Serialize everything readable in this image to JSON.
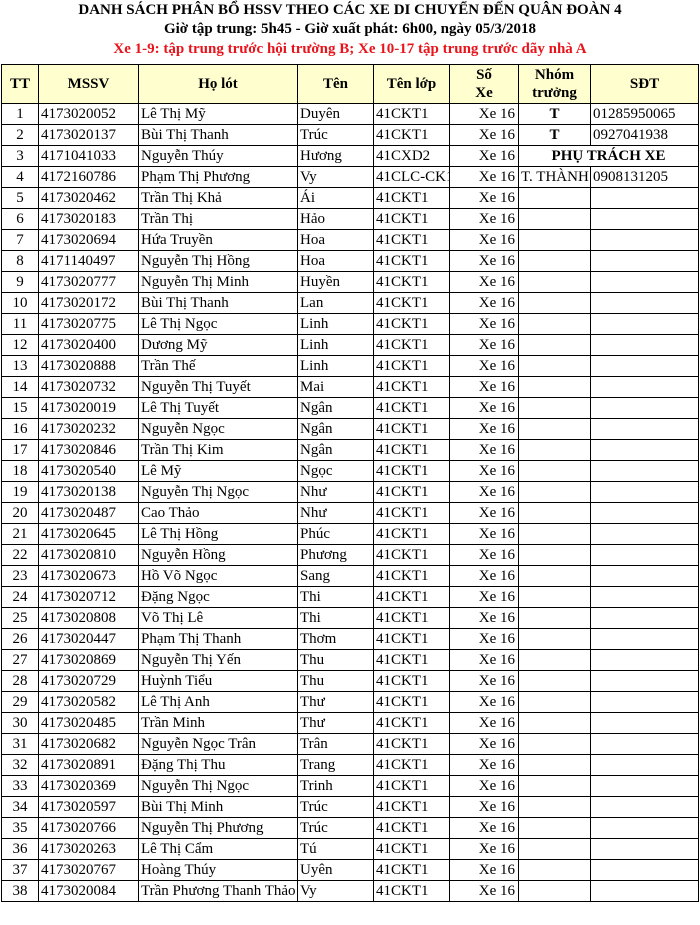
{
  "header": {
    "title": "DANH SÁCH PHÂN BỔ HSSV THEO CÁC XE DI CHUYỂN ĐẾN QUÂN ĐOÀN 4",
    "subtitle": "Giờ tập trung: 5h45 - Giờ xuất phát: 6h00, ngày 05/3/2018",
    "notice": "Xe 1-9: tập trung trước hội trường B; Xe 10-17 tập trung trước dãy nhà A",
    "notice_color": "#e8141b",
    "header_bg": "#fefecf"
  },
  "table": {
    "columns": {
      "tt": "TT",
      "mssv": "MSSV",
      "ho_lot": "Họ lót",
      "ten": "Tên",
      "ten_lop": "Tên lớp",
      "so_xe_1": "Số",
      "so_xe_2": "Xe",
      "nhom_truong_1": "Nhóm",
      "nhom_truong_2": "trưởng",
      "sdt": "SĐT"
    },
    "phu_trach_label": "PHỤ TRÁCH XE",
    "rows": [
      [
        "1",
        "4173020052",
        "Lê Thị Mỹ",
        "Duyên",
        "41CKT1",
        "Xe 16",
        "T",
        "01285950065"
      ],
      [
        "2",
        "4173020137",
        "Bùi Thị Thanh",
        "Trúc",
        "41CKT1",
        "Xe 16",
        "T",
        "0927041938"
      ],
      [
        "3",
        "4171041033",
        "Nguyễn Thúy",
        "Hương",
        "41CXD2",
        "Xe 16",
        "",
        ""
      ],
      [
        "4",
        "4172160786",
        "Phạm Thị Phương",
        "Vy",
        "41CLC-CK1",
        "Xe 16",
        "T. THÀNH",
        "0908131205"
      ],
      [
        "5",
        "4173020462",
        "Trần Thị Khả",
        "Ái",
        "41CKT1",
        "Xe 16",
        "",
        ""
      ],
      [
        "6",
        "4173020183",
        "Trần Thị",
        "Hảo",
        "41CKT1",
        "Xe 16",
        "",
        ""
      ],
      [
        "7",
        "4173020694",
        "Hứa Truyền",
        "Hoa",
        "41CKT1",
        "Xe 16",
        "",
        ""
      ],
      [
        "8",
        "4171140497",
        "Nguyễn Thị Hồng",
        "Hoa",
        "41CKT1",
        "Xe 16",
        "",
        ""
      ],
      [
        "9",
        "4173020777",
        "Nguyễn Thị Minh",
        "Huyền",
        "41CKT1",
        "Xe 16",
        "",
        ""
      ],
      [
        "10",
        "4173020172",
        "Bùi Thị Thanh",
        "Lan",
        "41CKT1",
        "Xe 16",
        "",
        ""
      ],
      [
        "11",
        "4173020775",
        "Lê Thị Ngọc",
        "Linh",
        "41CKT1",
        "Xe 16",
        "",
        ""
      ],
      [
        "12",
        "4173020400",
        "Dương Mỹ",
        "Linh",
        "41CKT1",
        "Xe 16",
        "",
        ""
      ],
      [
        "13",
        "4173020888",
        "Trần Thế",
        "Linh",
        "41CKT1",
        "Xe 16",
        "",
        ""
      ],
      [
        "14",
        "4173020732",
        "Nguyễn Thị Tuyết",
        "Mai",
        "41CKT1",
        "Xe 16",
        "",
        ""
      ],
      [
        "15",
        "4173020019",
        "Lê Thị Tuyết",
        "Ngân",
        "41CKT1",
        "Xe 16",
        "",
        ""
      ],
      [
        "16",
        "4173020232",
        "Nguyễn Ngọc",
        "Ngân",
        "41CKT1",
        "Xe 16",
        "",
        ""
      ],
      [
        "17",
        "4173020846",
        "Trần Thị Kim",
        "Ngân",
        "41CKT1",
        "Xe 16",
        "",
        ""
      ],
      [
        "18",
        "4173020540",
        "Lê Mỹ",
        "Ngọc",
        "41CKT1",
        "Xe 16",
        "",
        ""
      ],
      [
        "19",
        "4173020138",
        "Nguyễn Thị Ngọc",
        "Như",
        "41CKT1",
        "Xe 16",
        "",
        ""
      ],
      [
        "20",
        "4173020487",
        "Cao Thảo",
        "Như",
        "41CKT1",
        "Xe 16",
        "",
        ""
      ],
      [
        "21",
        "4173020645",
        "Lê Thị Hồng",
        "Phúc",
        "41CKT1",
        "Xe 16",
        "",
        ""
      ],
      [
        "22",
        "4173020810",
        "Nguyễn Hồng",
        "Phương",
        "41CKT1",
        "Xe 16",
        "",
        ""
      ],
      [
        "23",
        "4173020673",
        "Hồ Võ Ngọc",
        "Sang",
        "41CKT1",
        "Xe 16",
        "",
        ""
      ],
      [
        "24",
        "4173020712",
        "Đặng Ngọc",
        "Thi",
        "41CKT1",
        "Xe 16",
        "",
        ""
      ],
      [
        "25",
        "4173020808",
        "Võ Thị Lê",
        "Thi",
        "41CKT1",
        "Xe 16",
        "",
        ""
      ],
      [
        "26",
        "4173020447",
        "Phạm Thị Thanh",
        "Thơm",
        "41CKT1",
        "Xe 16",
        "",
        ""
      ],
      [
        "27",
        "4173020869",
        "Nguyễn Thị Yến",
        "Thu",
        "41CKT1",
        "Xe 16",
        "",
        ""
      ],
      [
        "28",
        "4173020729",
        "Huỳnh Tiểu",
        "Thu",
        "41CKT1",
        "Xe 16",
        "",
        ""
      ],
      [
        "29",
        "4173020582",
        "Lê Thị Anh",
        "Thư",
        "41CKT1",
        "Xe 16",
        "",
        ""
      ],
      [
        "30",
        "4173020485",
        "Trần Minh",
        "Thư",
        "41CKT1",
        "Xe 16",
        "",
        ""
      ],
      [
        "31",
        "4173020682",
        "Nguyễn Ngọc Trân",
        "Trân",
        "41CKT1",
        "Xe 16",
        "",
        ""
      ],
      [
        "32",
        "4173020891",
        "Đặng Thị Thu",
        "Trang",
        "41CKT1",
        "Xe 16",
        "",
        ""
      ],
      [
        "33",
        "4173020369",
        "Nguyễn Thị Ngọc",
        "Trinh",
        "41CKT1",
        "Xe 16",
        "",
        ""
      ],
      [
        "34",
        "4173020597",
        "Bùi Thị Minh",
        "Trúc",
        "41CKT1",
        "Xe 16",
        "",
        ""
      ],
      [
        "35",
        "4173020766",
        "Nguyễn Thị Phương",
        "Trúc",
        "41CKT1",
        "Xe 16",
        "",
        ""
      ],
      [
        "36",
        "4173020263",
        "Lê Thị Cẩm",
        "Tú",
        "41CKT1",
        "Xe 16",
        "",
        ""
      ],
      [
        "37",
        "4173020767",
        "Hoàng Thúy",
        "Uyên",
        "41CKT1",
        "Xe 16",
        "",
        ""
      ],
      [
        "38",
        "4173020084",
        "Trần Phương Thanh Thảo",
        "Vy",
        "41CKT1",
        "Xe 16",
        "",
        ""
      ]
    ]
  }
}
